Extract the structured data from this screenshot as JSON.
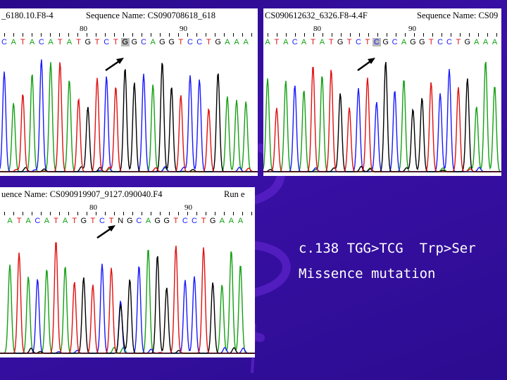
{
  "panels": [
    {
      "header_left": "_6180.10.F8-4",
      "header_right": "Sequence Name: CS090708618_618",
      "positions": [
        "80",
        "90"
      ],
      "sequence": "CATACATATGTCTGGCAGGTCCTGAAA",
      "highlight_index": 13
    },
    {
      "header_left": "CS090612632_6326.F8-4.4F",
      "header_right": "Sequence Name: CS09",
      "positions": [
        "80",
        "90"
      ],
      "sequence": "ATACATATGTCTCGCAGGTCCTGAAA",
      "highlight_index": 12
    },
    {
      "header_left": "uence Name: CS090919907_9127.090040.F4",
      "header_right": "Run e",
      "positions": [
        "80",
        "90"
      ],
      "sequence": "ATACATATGTCTNGCAGGTCCTGAAA",
      "highlight_index": -1
    }
  ],
  "caption": {
    "line1": "c.138 TGG>TCG  Trp>Ser",
    "line2": "Missence mutation"
  },
  "colors": {
    "A": "#14a014",
    "C": "#1a1aff",
    "G": "#000000",
    "T": "#e01010",
    "background": "#2f0d9c"
  }
}
